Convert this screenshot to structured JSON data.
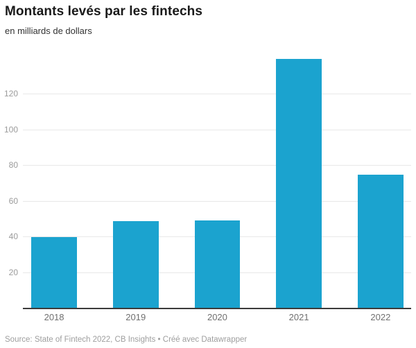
{
  "header": {
    "title": "Montants levés par les fintechs",
    "subtitle": "en milliards de dollars"
  },
  "footer": {
    "source": "Source: State of Fintech 2022, CB Insights • Créé avec Datawrapper"
  },
  "colors": {
    "bar": "#1ba3cf",
    "gridline": "#e8e8e8",
    "axis_line": "#3b3b3b",
    "y_tick_label": "#9b9b9b",
    "x_tick_label": "#6f6f6f",
    "title": "#1a1a1a",
    "subtitle": "#333333",
    "source": "#9e9e9e"
  },
  "chart_data": {
    "type": "bar",
    "title": "Montants levés par les fintechs",
    "subtitle": "en milliards de dollars",
    "categories": [
      "2018",
      "2019",
      "2020",
      "2021",
      "2022"
    ],
    "values": [
      40,
      49,
      49.5,
      140,
      75
    ],
    "xlabel": "",
    "ylabel": "en milliards de dollars",
    "ylim": [
      0,
      143.3
    ],
    "yticks": [
      20,
      40,
      60,
      80,
      100,
      120
    ],
    "grid": "horizontal",
    "legend": "none",
    "bar_color": "#1ba3cf",
    "source": "Source: State of Fintech 2022, CB Insights • Créé avec Datawrapper"
  }
}
